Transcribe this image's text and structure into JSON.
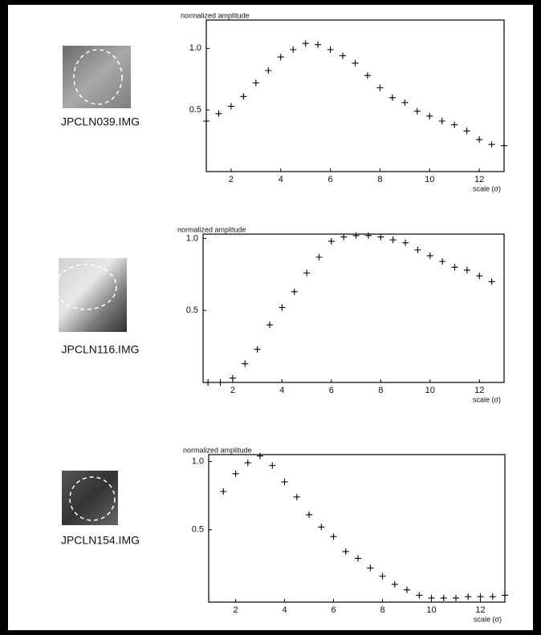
{
  "chart_data": [
    {
      "type": "scatter",
      "image_label": "JPCLN039.IMG",
      "y_label": "normalized amplitude",
      "x_label": "scale (σ)",
      "color": "#000000",
      "x": [
        1,
        1.5,
        2,
        2.5,
        3,
        3.5,
        4,
        4.5,
        5,
        5.5,
        6,
        6.5,
        7,
        7.5,
        8,
        8.5,
        9,
        9.5,
        10,
        10.5,
        11,
        11.5,
        12,
        12.5,
        13
      ],
      "values": [
        0.41,
        0.47,
        0.53,
        0.61,
        0.72,
        0.82,
        0.93,
        0.99,
        1.04,
        1.03,
        0.99,
        0.94,
        0.88,
        0.78,
        0.68,
        0.6,
        0.56,
        0.49,
        0.45,
        0.41,
        0.38,
        0.33,
        0.26,
        0.22,
        0.21
      ],
      "xlim": [
        1,
        13
      ],
      "ylim": [
        0,
        1.23
      ],
      "xticks": [
        2,
        4,
        6,
        8,
        10,
        12
      ],
      "yticks": [
        0.5,
        {
          "value": 1,
          "label": "1.0"
        }
      ]
    },
    {
      "type": "scatter",
      "image_label": "JPCLN116.IMG",
      "y_label": "normalized amplitude",
      "x_label": "scale (σ)",
      "color": "#000000",
      "x": [
        1,
        1.5,
        2,
        2.5,
        3,
        3.5,
        4,
        4.5,
        5,
        5.5,
        6,
        6.5,
        7,
        7.5,
        8,
        8.5,
        9,
        9.5,
        10,
        10.5,
        11,
        11.5,
        12,
        12.5
      ],
      "values": [
        0,
        0,
        0.03,
        0.13,
        0.23,
        0.4,
        0.52,
        0.63,
        0.76,
        0.87,
        0.98,
        1.01,
        1.02,
        1.02,
        1.01,
        0.99,
        0.97,
        0.92,
        0.88,
        0.84,
        0.8,
        0.78,
        0.74,
        0.7
      ],
      "xlim": [
        0.8,
        13
      ],
      "ylim": [
        0,
        1.03
      ],
      "xticks": [
        2,
        4,
        6,
        8,
        10,
        12
      ],
      "yticks": [
        0.5,
        {
          "value": 1,
          "label": "1.0"
        }
      ]
    },
    {
      "type": "scatter",
      "image_label": "JPCLN154.IMG",
      "y_label": "normalized amplitude",
      "x_label": "scale (σ)",
      "color": "#000000",
      "x": [
        1.5,
        2,
        2.5,
        3,
        3.5,
        4,
        4.5,
        5,
        5.5,
        6,
        6.5,
        7,
        7.5,
        8,
        8.5,
        9,
        9.5,
        10,
        10.5,
        11,
        11.5,
        12,
        12.5,
        13
      ],
      "values": [
        0.78,
        0.91,
        0.99,
        1.04,
        0.97,
        0.85,
        0.74,
        0.61,
        0.52,
        0.45,
        0.34,
        0.29,
        0.22,
        0.16,
        0.1,
        0.06,
        0.02,
        0,
        0,
        0,
        0.01,
        0.01,
        0.01,
        0.02
      ],
      "xlim": [
        0.9,
        13
      ],
      "ylim": [
        -0.03,
        1.05
      ],
      "xticks": [
        2,
        4,
        6,
        8,
        10,
        12
      ],
      "yticks": [
        0.5,
        {
          "value": 1,
          "label": "1.0"
        }
      ]
    }
  ]
}
